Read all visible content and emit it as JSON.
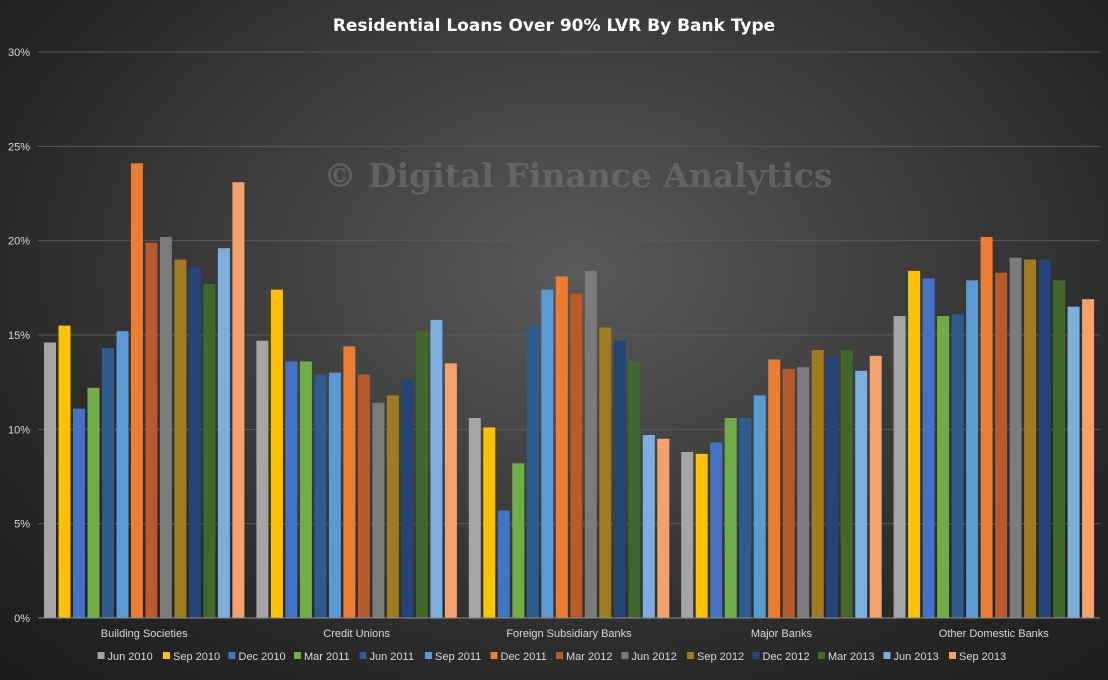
{
  "watermark": "© Digital Finance Analytics",
  "chart_data": {
    "type": "bar",
    "title": "Residential  Loans  Over 90% LVR By Bank Type",
    "xlabel": "",
    "ylabel": "",
    "ylim": [
      0,
      30
    ],
    "yticks": [
      "0%",
      "5%",
      "10%",
      "15%",
      "20%",
      "25%",
      "30%"
    ],
    "grid": true,
    "legend_position": "bottom",
    "categories": [
      "Building Societies",
      "Credit Unions",
      "Foreign Subsidiary Banks",
      "Major Banks",
      "Other Domestic Banks"
    ],
    "series": [
      {
        "name": "Jun 2010",
        "color": "#a5a5a5",
        "values": [
          14.6,
          14.7,
          10.6,
          8.8,
          16.0
        ]
      },
      {
        "name": "Sep 2010",
        "color": "#ffc000",
        "values": [
          15.5,
          17.4,
          10.1,
          8.7,
          18.4
        ]
      },
      {
        "name": "Dec 2010",
        "color": "#4472c4",
        "values": [
          11.1,
          13.6,
          5.7,
          9.3,
          18.0
        ]
      },
      {
        "name": "Mar 2011",
        "color": "#70ad47",
        "values": [
          12.2,
          13.6,
          8.2,
          10.6,
          16.0
        ]
      },
      {
        "name": "Jun 2011",
        "color": "#2e5c8f",
        "values": [
          14.3,
          12.9,
          15.5,
          10.6,
          16.1
        ]
      },
      {
        "name": "Sep 2011",
        "color": "#5b9bd5",
        "values": [
          15.2,
          13.0,
          17.4,
          11.8,
          17.9
        ]
      },
      {
        "name": "Dec 2011",
        "color": "#ed7d31",
        "values": [
          24.1,
          14.4,
          18.1,
          13.7,
          20.2
        ]
      },
      {
        "name": "Mar 2012",
        "color": "#b85a2a",
        "values": [
          19.9,
          12.9,
          17.2,
          13.2,
          18.3
        ]
      },
      {
        "name": "Jun 2012",
        "color": "#7b7b7b",
        "values": [
          20.2,
          11.4,
          18.4,
          13.3,
          19.1
        ]
      },
      {
        "name": "Sep 2012",
        "color": "#a07b1f",
        "values": [
          19.0,
          11.8,
          15.4,
          14.2,
          19.0
        ]
      },
      {
        "name": "Dec 2012",
        "color": "#264478",
        "values": [
          18.6,
          12.6,
          14.7,
          13.9,
          19.0
        ]
      },
      {
        "name": "Mar 2013",
        "color": "#43682b",
        "values": [
          17.7,
          15.2,
          13.6,
          14.2,
          17.9
        ]
      },
      {
        "name": "Jun 2013",
        "color": "#7cafdd",
        "values": [
          19.6,
          15.8,
          9.7,
          13.1,
          16.5
        ]
      },
      {
        "name": "Sep 2013",
        "color": "#f4a16e",
        "values": [
          23.1,
          13.5,
          9.5,
          13.9,
          16.9
        ]
      }
    ]
  }
}
